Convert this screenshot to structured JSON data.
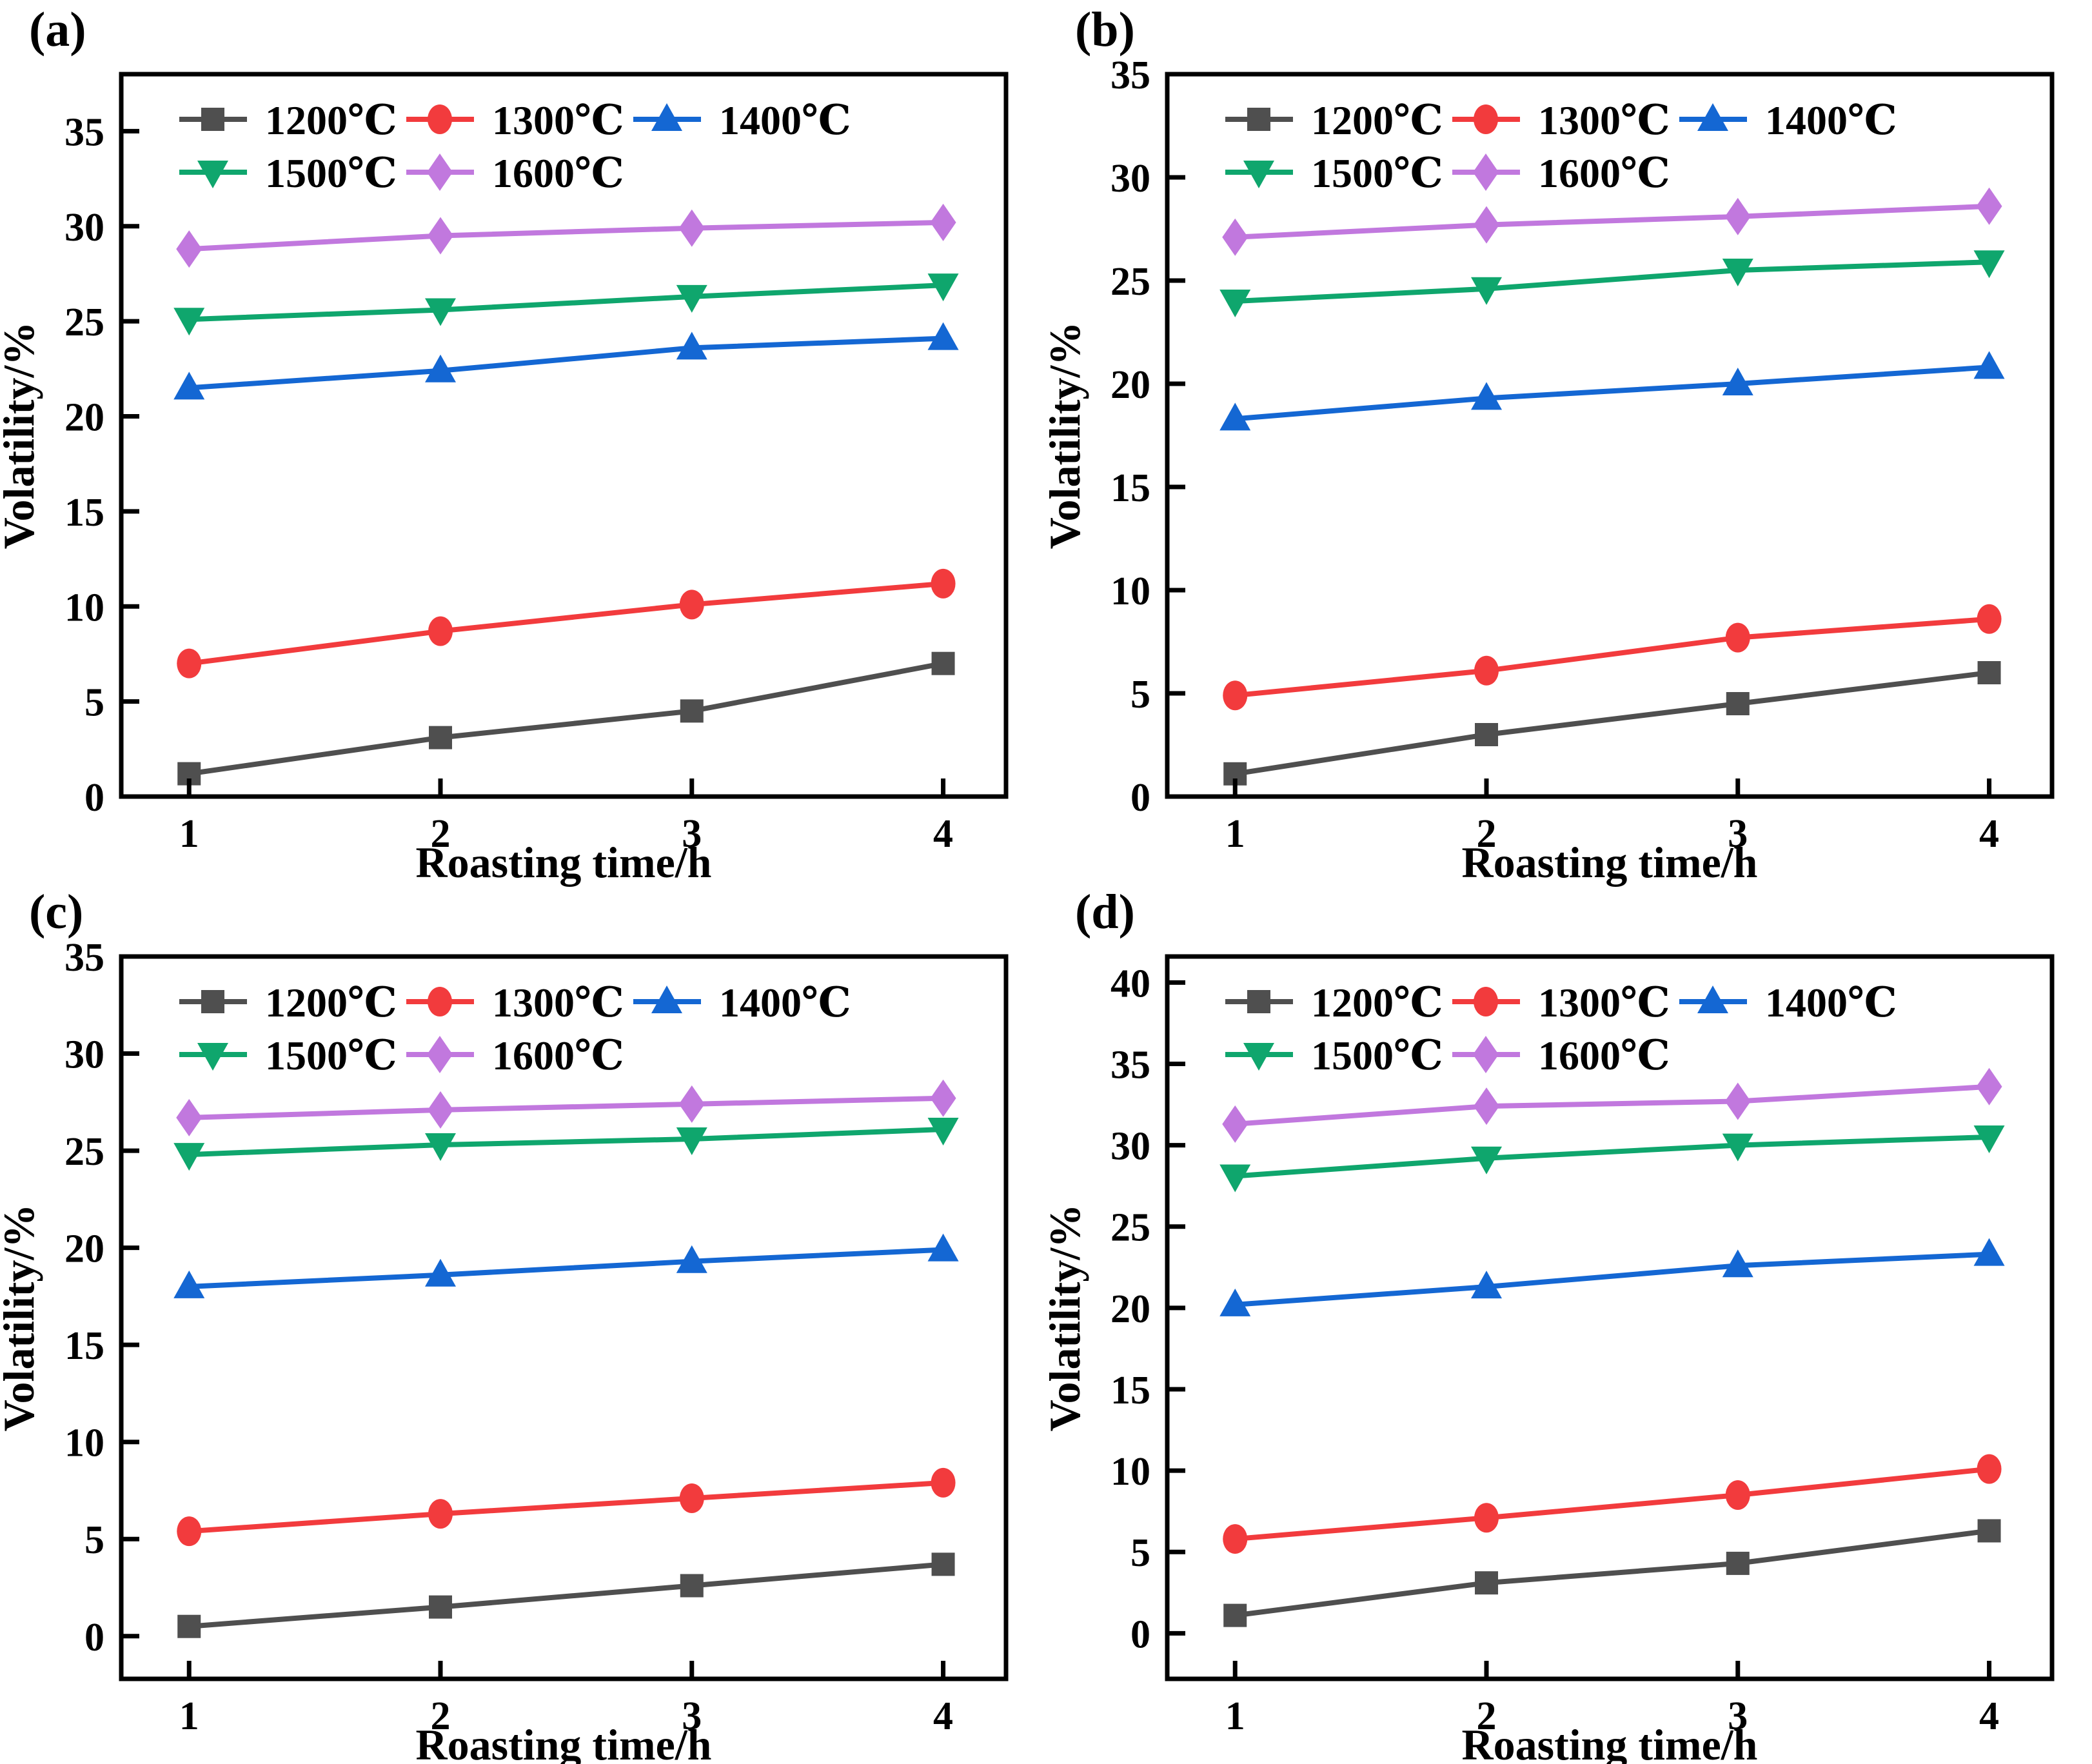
{
  "figure": {
    "background": "#ffffff",
    "axis_color": "#000000"
  },
  "chart_data": [
    {
      "type": "line",
      "panel_label": "(a)",
      "xlabel": "Roasting time/h",
      "ylabel": "Volatility/%",
      "x": [
        1,
        2,
        3,
        4
      ],
      "xticks": [
        1,
        2,
        3,
        4
      ],
      "xlim": [
        0.73,
        4.25
      ],
      "yticks": [
        0,
        5,
        10,
        15,
        20,
        25,
        30,
        35
      ],
      "ylim": [
        0,
        38
      ],
      "grid": false,
      "legend_position": "top-left",
      "series": [
        {
          "name": "1200℃",
          "marker": "square",
          "color": "#4f4f4f",
          "values": [
            1.2,
            3.1,
            4.5,
            7.0
          ]
        },
        {
          "name": "1300℃",
          "marker": "circle",
          "color": "#f23b3d",
          "values": [
            7.0,
            8.7,
            10.1,
            11.2
          ]
        },
        {
          "name": "1400℃",
          "marker": "triangle-up",
          "color": "#1467d3",
          "values": [
            21.5,
            22.4,
            23.6,
            24.1
          ]
        },
        {
          "name": "1500℃",
          "marker": "triangle-down",
          "color": "#0fa66d",
          "values": [
            25.1,
            25.6,
            26.3,
            26.9
          ]
        },
        {
          "name": "1600℃",
          "marker": "diamond",
          "color": "#c178de",
          "values": [
            28.8,
            29.5,
            29.9,
            30.2
          ]
        }
      ]
    },
    {
      "type": "line",
      "panel_label": "(b)",
      "xlabel": "Roasting time/h",
      "ylabel": "Volatility/%",
      "x": [
        1,
        2,
        3,
        4
      ],
      "xticks": [
        1,
        2,
        3,
        4
      ],
      "xlim": [
        0.73,
        4.25
      ],
      "yticks": [
        0,
        5,
        10,
        15,
        20,
        25,
        30,
        35
      ],
      "ylim": [
        0,
        35
      ],
      "grid": false,
      "legend_position": "top-left",
      "series": [
        {
          "name": "1200℃",
          "marker": "square",
          "color": "#4f4f4f",
          "values": [
            1.1,
            3.0,
            4.5,
            6.0
          ]
        },
        {
          "name": "1300℃",
          "marker": "circle",
          "color": "#f23b3d",
          "values": [
            4.9,
            6.1,
            7.7,
            8.6
          ]
        },
        {
          "name": "1400℃",
          "marker": "triangle-up",
          "color": "#1467d3",
          "values": [
            18.3,
            19.3,
            20.0,
            20.8
          ]
        },
        {
          "name": "1500℃",
          "marker": "triangle-down",
          "color": "#0fa66d",
          "values": [
            24.0,
            24.6,
            25.5,
            25.9
          ]
        },
        {
          "name": "1600℃",
          "marker": "diamond",
          "color": "#c178de",
          "values": [
            27.1,
            27.7,
            28.1,
            28.6
          ]
        }
      ]
    },
    {
      "type": "line",
      "panel_label": "(c)",
      "xlabel": "Roasting time/h",
      "ylabel": "Volatility/%",
      "x": [
        1,
        2,
        3,
        4
      ],
      "xticks": [
        1,
        2,
        3,
        4
      ],
      "xlim": [
        0.73,
        4.25
      ],
      "yticks": [
        0,
        5,
        10,
        15,
        20,
        25,
        30,
        35
      ],
      "ylim": [
        -2.2,
        35
      ],
      "grid": false,
      "legend_position": "top-left",
      "series": [
        {
          "name": "1200℃",
          "marker": "square",
          "color": "#4f4f4f",
          "values": [
            0.5,
            1.5,
            2.6,
            3.7
          ]
        },
        {
          "name": "1300℃",
          "marker": "circle",
          "color": "#f23b3d",
          "values": [
            5.4,
            6.3,
            7.1,
            7.9
          ]
        },
        {
          "name": "1400℃",
          "marker": "triangle-up",
          "color": "#1467d3",
          "values": [
            18.0,
            18.6,
            19.3,
            19.9
          ]
        },
        {
          "name": "1500℃",
          "marker": "triangle-down",
          "color": "#0fa66d",
          "values": [
            24.8,
            25.3,
            25.6,
            26.1
          ]
        },
        {
          "name": "1600℃",
          "marker": "diamond",
          "color": "#c178de",
          "values": [
            26.7,
            27.1,
            27.4,
            27.7
          ]
        }
      ]
    },
    {
      "type": "line",
      "panel_label": "(d)",
      "xlabel": "Roasting time/h",
      "ylabel": "Volatility/%",
      "x": [
        1,
        2,
        3,
        4
      ],
      "xticks": [
        1,
        2,
        3,
        4
      ],
      "xlim": [
        0.73,
        4.25
      ],
      "yticks": [
        0,
        5,
        10,
        15,
        20,
        25,
        30,
        35,
        40
      ],
      "ylim": [
        -2.8,
        41.6
      ],
      "grid": false,
      "legend_position": "top-left",
      "series": [
        {
          "name": "1200℃",
          "marker": "square",
          "color": "#4f4f4f",
          "values": [
            1.1,
            3.1,
            4.3,
            6.3
          ]
        },
        {
          "name": "1300℃",
          "marker": "circle",
          "color": "#f23b3d",
          "values": [
            5.8,
            7.1,
            8.5,
            10.1
          ]
        },
        {
          "name": "1400℃",
          "marker": "triangle-up",
          "color": "#1467d3",
          "values": [
            20.2,
            21.3,
            22.6,
            23.3
          ]
        },
        {
          "name": "1500℃",
          "marker": "triangle-down",
          "color": "#0fa66d",
          "values": [
            28.1,
            29.2,
            30.0,
            30.5
          ]
        },
        {
          "name": "1600℃",
          "marker": "diamond",
          "color": "#c178de",
          "values": [
            31.3,
            32.4,
            32.7,
            33.6
          ]
        }
      ]
    }
  ]
}
